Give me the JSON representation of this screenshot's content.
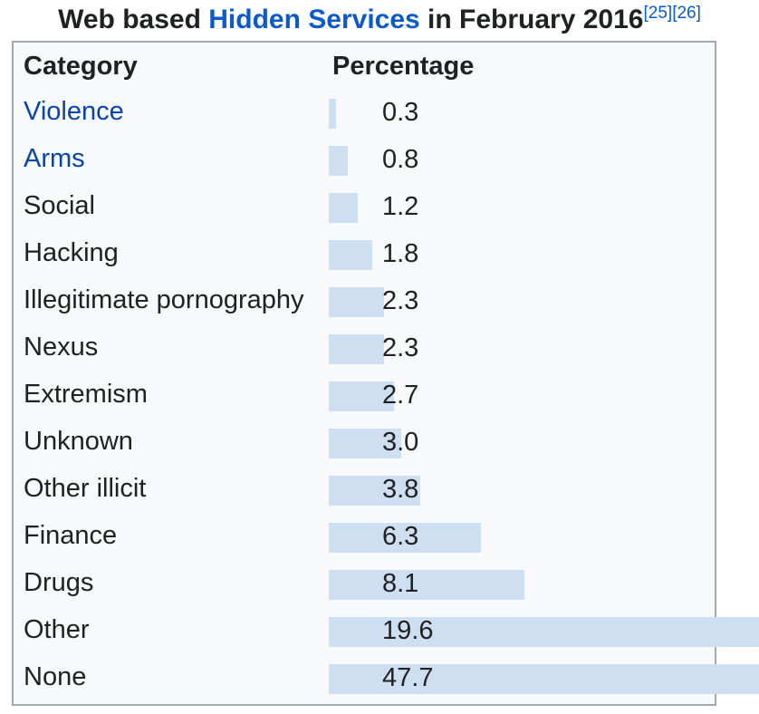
{
  "title": {
    "prefix": "Web based ",
    "link": "Hidden Services",
    "suffix": " in February 2016",
    "refs": [
      "[25]",
      "[26]"
    ]
  },
  "table": {
    "headers": [
      "Category",
      "Percentage"
    ],
    "rows": [
      {
        "label": "Violence",
        "value": 0.3,
        "display": "0.3",
        "link": true
      },
      {
        "label": "Arms",
        "value": 0.8,
        "display": "0.8",
        "link": true
      },
      {
        "label": "Social",
        "value": 1.2,
        "display": "1.2",
        "link": false
      },
      {
        "label": "Hacking",
        "value": 1.8,
        "display": "1.8",
        "link": false
      },
      {
        "label": "Illegitimate pornography",
        "value": 2.3,
        "display": "2.3",
        "link": false
      },
      {
        "label": "Nexus",
        "value": 2.3,
        "display": "2.3",
        "link": false
      },
      {
        "label": "Extremism",
        "value": 2.7,
        "display": "2.7",
        "link": false
      },
      {
        "label": "Unknown",
        "value": 3.0,
        "display": "3.0",
        "link": false
      },
      {
        "label": "Other illicit",
        "value": 3.8,
        "display": "3.8",
        "link": false
      },
      {
        "label": "Finance",
        "value": 6.3,
        "display": "6.3",
        "link": false
      },
      {
        "label": "Drugs",
        "value": 8.1,
        "display": "8.1",
        "link": false
      },
      {
        "label": "Other",
        "value": 19.6,
        "display": "19.6",
        "link": false
      },
      {
        "label": "None",
        "value": 47.7,
        "display": "47.7",
        "link": false
      }
    ]
  },
  "chart_data": {
    "type": "bar",
    "orientation": "horizontal",
    "title": "Web based Hidden Services in February 2016",
    "categories": [
      "Violence",
      "Arms",
      "Social",
      "Hacking",
      "Illegitimate pornography",
      "Nexus",
      "Extremism",
      "Unknown",
      "Other illicit",
      "Finance",
      "Drugs",
      "Other",
      "None"
    ],
    "values": [
      0.3,
      0.8,
      1.2,
      1.8,
      2.3,
      2.3,
      2.7,
      3.0,
      3.8,
      6.3,
      8.1,
      19.6,
      47.7
    ],
    "value_labels": [
      "0.3",
      "0.8",
      "1.2",
      "1.8",
      "2.3",
      "2.3",
      "2.7",
      "3.0",
      "3.8",
      "6.3",
      "8.1",
      "19.6",
      "47.7"
    ],
    "xlabel": "Percentage",
    "ylabel": "Category",
    "legend": false,
    "grid": false,
    "notes": "Bars for Other and None overflow past the table right edge and are clipped by the page edge"
  },
  "colors": {
    "bar": "#cedff2",
    "border": "#a2a9b1",
    "text": "#202122",
    "link": "#0645ad",
    "title_link": "#0b5ac8",
    "table_bg": "#f8f9fa"
  }
}
